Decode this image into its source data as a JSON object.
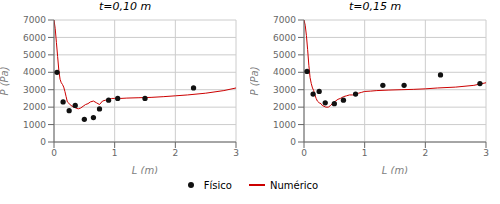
{
  "chart_data": [
    {
      "type": "line",
      "title": "t=0,10 m",
      "xlabel": "L (m)",
      "ylabel": "P (Pa)",
      "xlim": [
        0,
        3
      ],
      "ylim": [
        0,
        7000
      ],
      "xticks": [
        0,
        1,
        2,
        3
      ],
      "yticks": [
        0,
        1000,
        2000,
        3000,
        4000,
        5000,
        6000,
        7000
      ],
      "grid": true,
      "legend": "bottom",
      "series": [
        {
          "name": "Físico",
          "type": "scatter",
          "color": "#111111",
          "marker": "o",
          "x": [
            0.05,
            0.15,
            0.25,
            0.35,
            0.5,
            0.65,
            0.75,
            0.9,
            1.05,
            1.5,
            2.3
          ],
          "values": [
            4000,
            2300,
            1800,
            2100,
            1300,
            1400,
            1900,
            2400,
            2500,
            2500,
            3100
          ]
        },
        {
          "name": "Numérico",
          "type": "line",
          "color": "#cc0000",
          "line_style": "solid",
          "x": [
            0.0,
            0.02,
            0.04,
            0.06,
            0.08,
            0.1,
            0.12,
            0.14,
            0.16,
            0.18,
            0.2,
            0.22,
            0.25,
            0.28,
            0.3,
            0.33,
            0.36,
            0.4,
            0.44,
            0.48,
            0.52,
            0.56,
            0.6,
            0.65,
            0.7,
            0.75,
            0.8,
            0.85,
            0.9,
            0.95,
            1.0,
            1.1,
            1.2,
            1.4,
            1.6,
            1.8,
            2.0,
            2.2,
            2.5,
            2.8,
            3.0
          ],
          "values": [
            7000,
            6500,
            5700,
            4900,
            4100,
            3600,
            3400,
            3300,
            3150,
            2900,
            2600,
            2300,
            2200,
            2100,
            2050,
            2000,
            1950,
            1900,
            1950,
            2050,
            2150,
            2200,
            2300,
            2350,
            2250,
            2150,
            2350,
            2400,
            2450,
            2500,
            2500,
            2500,
            2520,
            2540,
            2560,
            2600,
            2650,
            2700,
            2800,
            2950,
            3100
          ]
        }
      ]
    },
    {
      "type": "line",
      "title": "t=0,15 m",
      "xlabel": "L (m)",
      "ylabel": "P (Pa)",
      "xlim": [
        0,
        3
      ],
      "ylim": [
        0,
        7000
      ],
      "xticks": [
        0,
        1,
        2,
        3
      ],
      "yticks": [
        0,
        1000,
        2000,
        3000,
        4000,
        5000,
        6000,
        7000
      ],
      "grid": true,
      "series": [
        {
          "name": "Físico",
          "type": "scatter",
          "color": "#111111",
          "marker": "o",
          "x": [
            0.05,
            0.15,
            0.25,
            0.35,
            0.5,
            0.65,
            0.85,
            1.3,
            1.65,
            2.25,
            2.9
          ],
          "values": [
            4050,
            2750,
            2900,
            2250,
            2200,
            2400,
            2750,
            3250,
            3250,
            3850,
            3350
          ]
        },
        {
          "name": "Numérico",
          "type": "line",
          "color": "#cc0000",
          "line_style": "solid",
          "x": [
            0.0,
            0.02,
            0.04,
            0.06,
            0.08,
            0.1,
            0.12,
            0.14,
            0.16,
            0.18,
            0.2,
            0.22,
            0.25,
            0.28,
            0.3,
            0.33,
            0.36,
            0.4,
            0.44,
            0.48,
            0.52,
            0.56,
            0.6,
            0.65,
            0.7,
            0.75,
            0.8,
            0.85,
            0.9,
            0.95,
            1.0,
            1.1,
            1.2,
            1.4,
            1.6,
            1.8,
            2.0,
            2.2,
            2.5,
            2.8,
            3.0
          ],
          "values": [
            7000,
            6700,
            6100,
            5300,
            4400,
            3700,
            3350,
            3100,
            2950,
            2700,
            2500,
            2350,
            2250,
            2200,
            2100,
            2050,
            2000,
            2000,
            2100,
            2250,
            2350,
            2450,
            2500,
            2600,
            2650,
            2700,
            2700,
            2750,
            2800,
            2850,
            2900,
            2920,
            2950,
            2980,
            3000,
            3020,
            3050,
            3100,
            3150,
            3250,
            3400
          ]
        }
      ]
    }
  ]
}
